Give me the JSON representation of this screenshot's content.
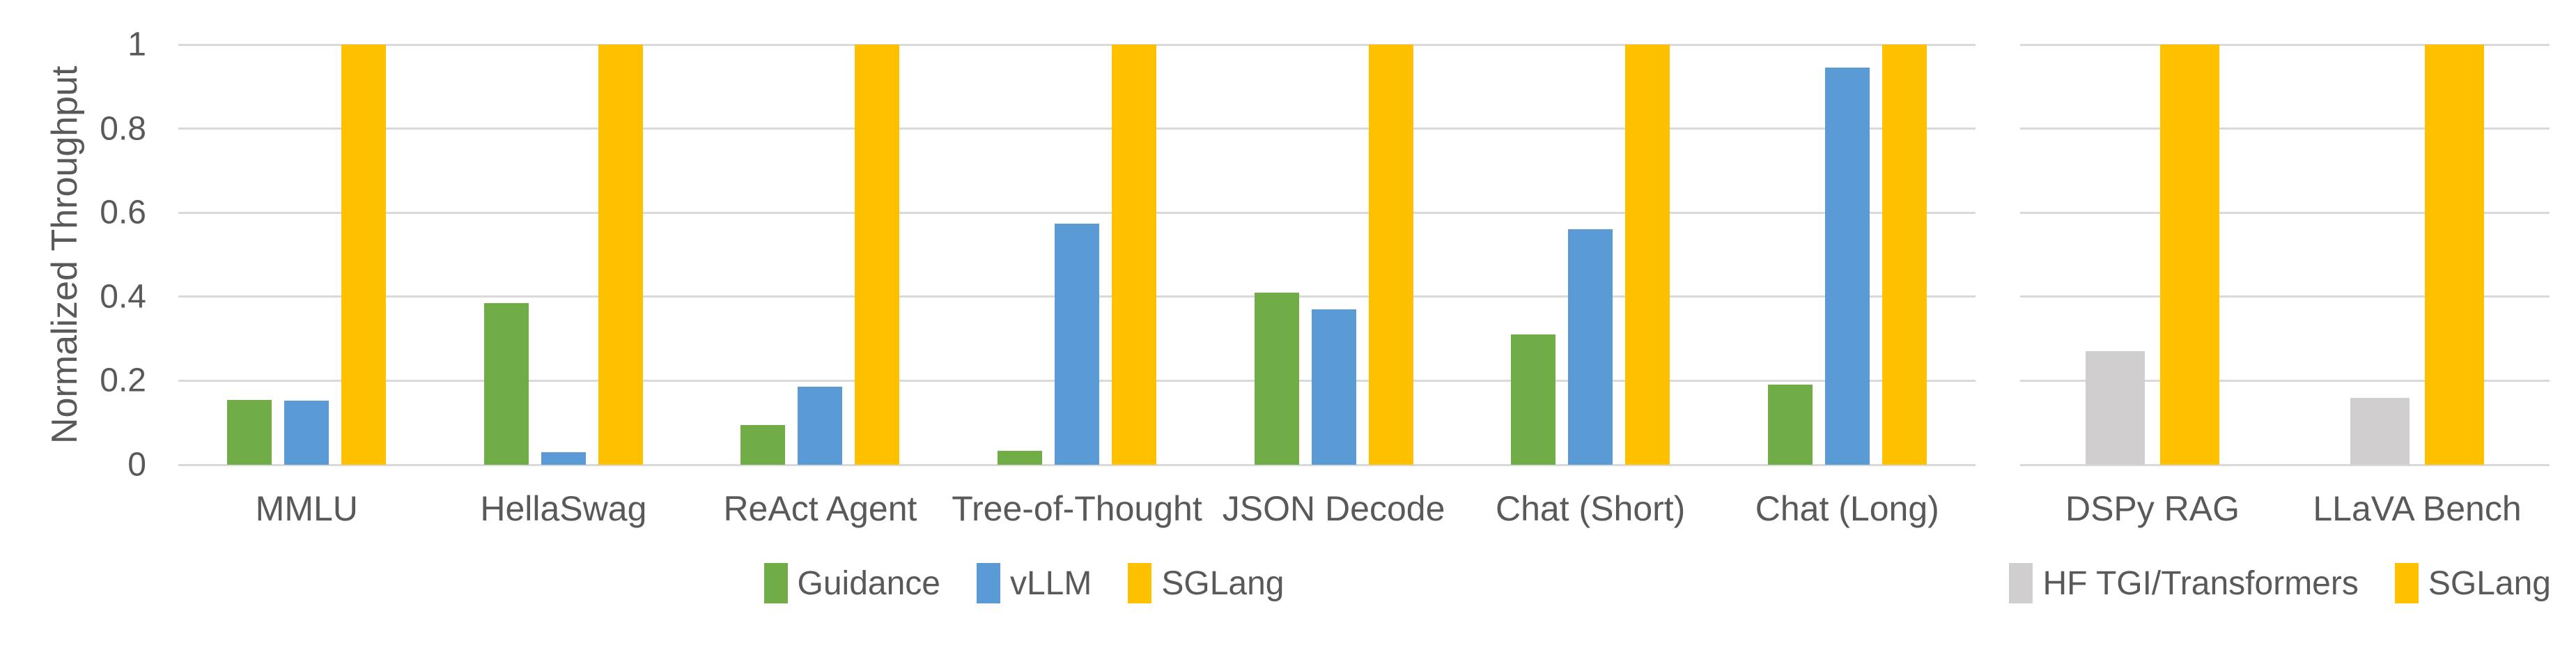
{
  "figure": {
    "background": "#FFFFFF",
    "text_color": "#595959",
    "gridline_color": "#D9D9D9",
    "accent_yellow": "#FFC000"
  },
  "chart_data": [
    {
      "type": "bar",
      "title": "",
      "xlabel": "",
      "ylabel": "Normalized Throughput",
      "ylim": [
        0,
        1
      ],
      "ytick_values": [
        0,
        0.2,
        0.4,
        0.6,
        0.8,
        1
      ],
      "ytick_labels": [
        "0",
        "0.2",
        "0.4",
        "0.6",
        "0.8",
        "1"
      ],
      "grid": true,
      "legend_position": "bottom-center",
      "categories": [
        "MMLU",
        "HellaSwag",
        "ReAct Agent",
        "Tree-of-Thought",
        "JSON Decode",
        "Chat (Short)",
        "Chat (Long)"
      ],
      "series": [
        {
          "name": "Guidance",
          "color": "#70AD47",
          "values": [
            0.155,
            0.385,
            0.095,
            0.033,
            0.41,
            0.31,
            0.19
          ]
        },
        {
          "name": "vLLM",
          "color": "#5B9BD5",
          "values": [
            0.153,
            0.03,
            0.185,
            0.573,
            0.37,
            0.56,
            0.945
          ]
        },
        {
          "name": "SGLang",
          "color": "#FFC000",
          "values": [
            1,
            1,
            1,
            1,
            1,
            1,
            1
          ]
        }
      ]
    },
    {
      "type": "bar",
      "title": "",
      "xlabel": "",
      "ylabel": "",
      "ylim": [
        0,
        1
      ],
      "ytick_values": [
        0,
        0.2,
        0.4,
        0.6,
        0.8,
        1
      ],
      "ytick_labels": [],
      "grid": true,
      "legend_position": "bottom-right",
      "categories": [
        "DSPy RAG",
        "LLaVA Bench"
      ],
      "series": [
        {
          "name": "HF TGI/Transformers",
          "color": "#D0CECE",
          "values": [
            0.27,
            0.16
          ]
        },
        {
          "name": "SGLang",
          "color": "#FFC000",
          "values": [
            1,
            1
          ]
        }
      ]
    }
  ]
}
